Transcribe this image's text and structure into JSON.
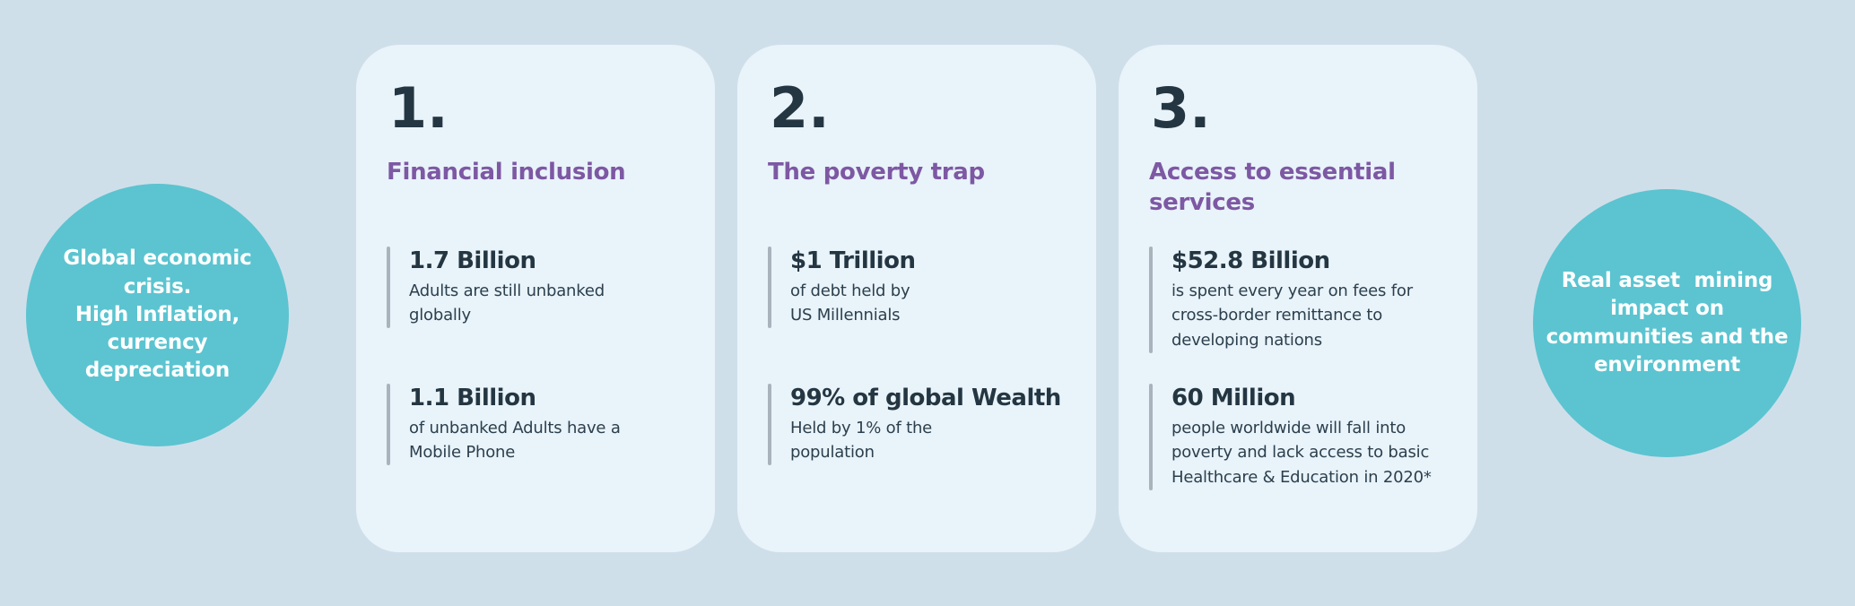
{
  "palette": {
    "page_background": "#cfdfea",
    "card_background": "#e9f3fa",
    "circle_teal": "#5bc4d0",
    "circle_text_white": "#ffffff",
    "heading_purple": "#7d58a3",
    "number_dark": "#243642",
    "body_text": "#2b3f4d",
    "accent_bar_gray": "#a9b3bb"
  },
  "left_circle": {
    "text": "Global economic\ncrisis.\nHigh Inflation,\ncurrency\ndepreciation"
  },
  "right_circle": {
    "text": "Real asset  mining\nimpact on\ncommunities and the\nenvironment"
  },
  "cards": [
    {
      "number": "1.",
      "title": "Financial inclusion",
      "stats": [
        {
          "value": "1.7 Billion",
          "description": "Adults are still unbanked\nglobally"
        },
        {
          "value": "1.1 Billion",
          "description": "of unbanked Adults have a\nMobile Phone"
        }
      ]
    },
    {
      "number": "2.",
      "title": "The poverty trap",
      "stats": [
        {
          "value": "$1 Trillion",
          "description": "of debt held by\nUS Millennials"
        },
        {
          "value": "99% of global Wealth",
          "description": "Held by 1% of the\npopulation"
        }
      ]
    },
    {
      "number": "3.",
      "title": "Access to essential\nservices",
      "stats": [
        {
          "value": "$52.8 Billion",
          "description": "is spent every year on fees for\ncross-border remittance to\ndeveloping nations"
        },
        {
          "value": "60 Million",
          "description": "people worldwide will fall into\npoverty and lack access to basic\nHealthcare & Education in 2020*"
        }
      ]
    }
  ]
}
